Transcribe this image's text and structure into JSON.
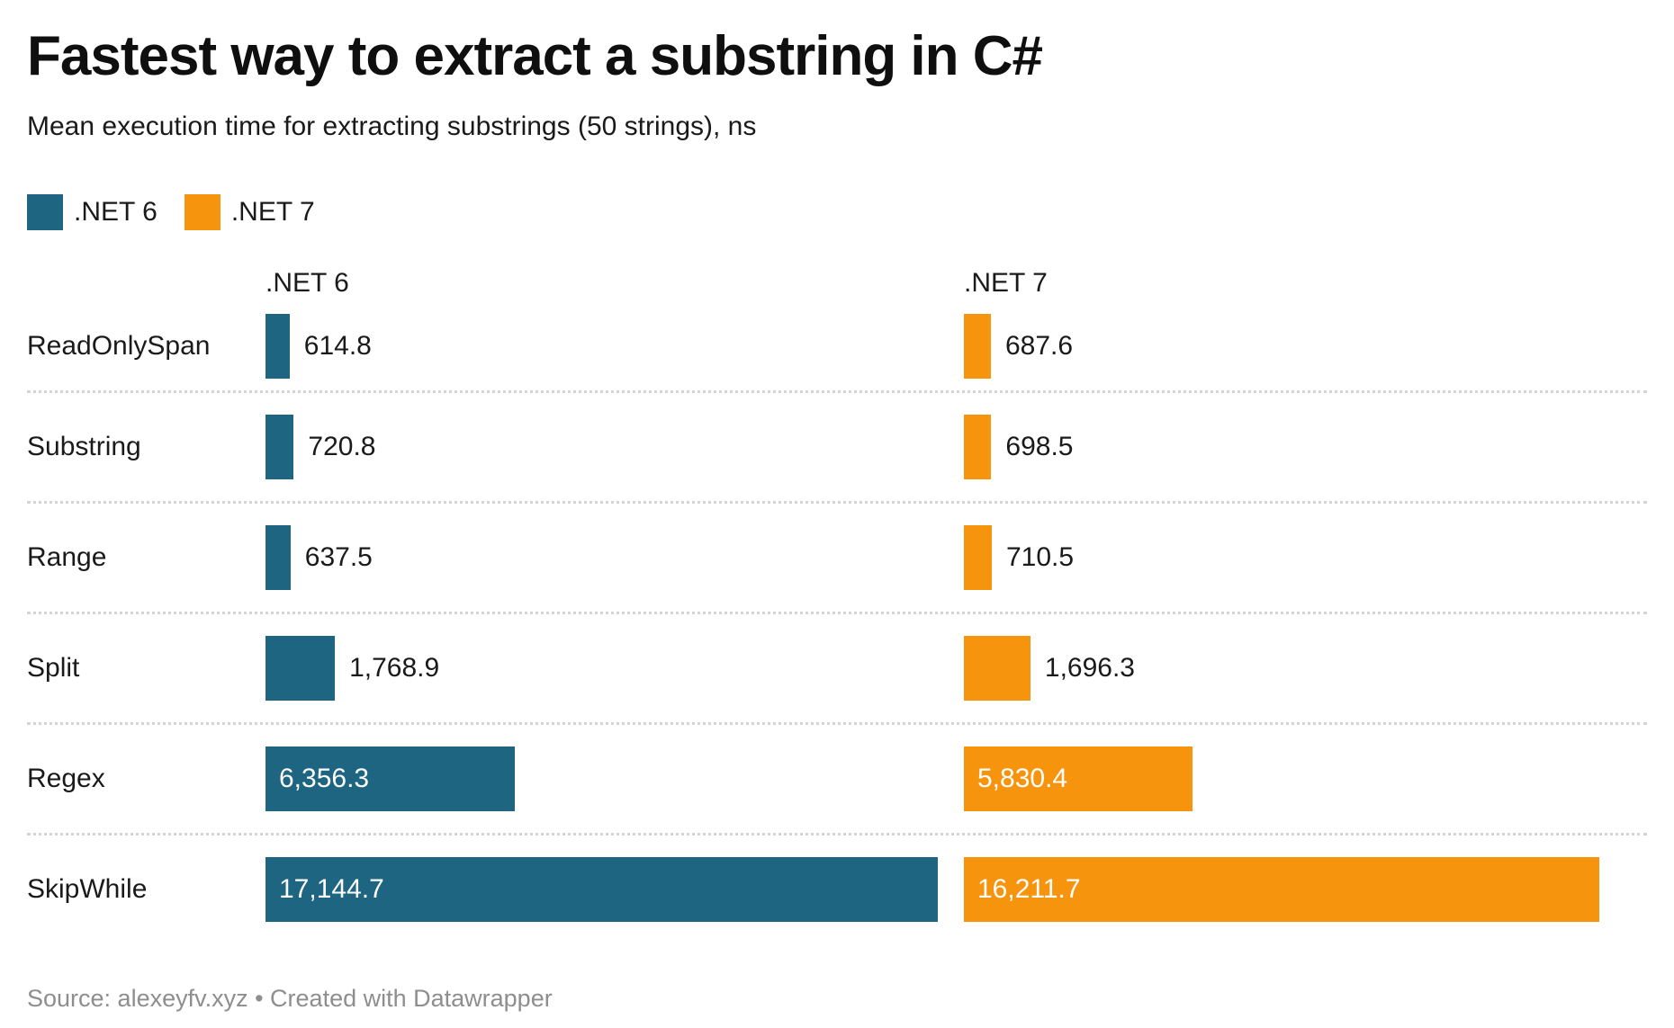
{
  "title": "Fastest way to extract a substring in C#",
  "subtitle": "Mean execution time for extracting substrings (50 strings), ns",
  "legend": {
    "items": [
      {
        "label": ".NET 6",
        "color": "#1d6580"
      },
      {
        "label": ".NET 7",
        "color": "#f7940d"
      }
    ]
  },
  "columns": {
    "left_header": ".NET 6",
    "right_header": ".NET 7"
  },
  "colors": {
    "net6": "#1d6580",
    "net7": "#f7940d",
    "separator": "#d4d4d4",
    "value_text": "#1a1a1a",
    "value_text_inside": "#ffffff",
    "footer_text": "#8e8e8e"
  },
  "footer": "Source: alexeyfv.xyz • Created with Datawrapper",
  "chart_data": {
    "type": "bar",
    "orientation": "horizontal",
    "title": "Fastest way to extract a substring in C#",
    "subtitle": "Mean execution time for extracting substrings (50 strings), ns",
    "unit": "ns",
    "xlim": [
      0,
      17144.7
    ],
    "grid": false,
    "legend_position": "top-left",
    "categories": [
      "ReadOnlySpan",
      "Substring",
      "Range",
      "Split",
      "Regex",
      "SkipWhile"
    ],
    "series": [
      {
        "name": ".NET 6",
        "color": "#1d6580",
        "values": [
          614.8,
          720.8,
          637.5,
          1768.9,
          6356.3,
          17144.7
        ],
        "value_labels": [
          "614.8",
          "720.8",
          "637.5",
          "1,768.9",
          "6,356.3",
          "17,144.7"
        ]
      },
      {
        "name": ".NET 7",
        "color": "#f7940d",
        "values": [
          687.6,
          698.5,
          710.5,
          1696.3,
          5830.4,
          16211.7
        ],
        "value_labels": [
          "687.6",
          "698.5",
          "710.5",
          "1,696.3",
          "5,830.4",
          "16,211.7"
        ]
      }
    ]
  }
}
